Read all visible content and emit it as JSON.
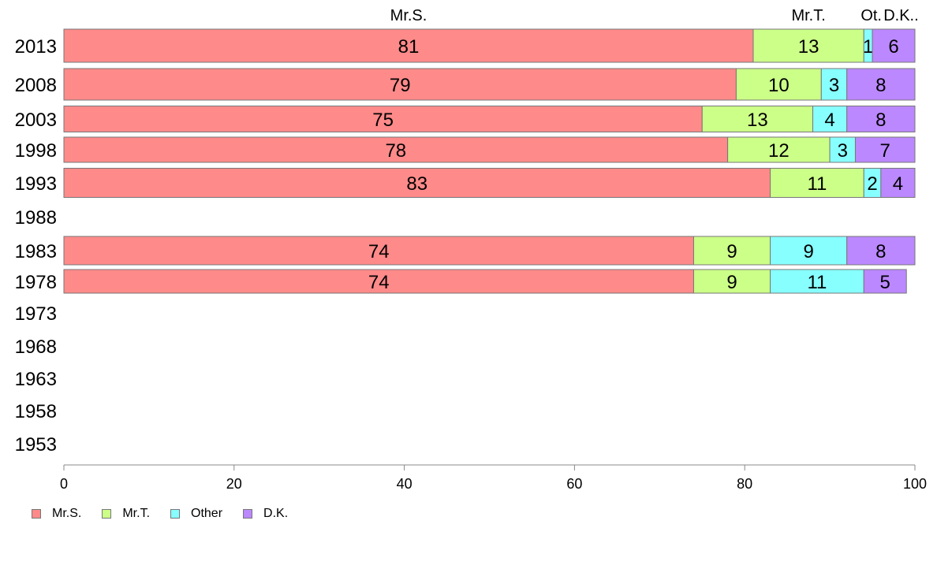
{
  "chart_data": {
    "type": "bar",
    "orientation": "horizontal",
    "stacked": true,
    "categories": [
      "2013",
      "2008",
      "2003",
      "1998",
      "1993",
      "1988",
      "1983",
      "1978",
      "1973",
      "1968",
      "1963",
      "1958",
      "1953"
    ],
    "series": [
      {
        "name": "Mr.S.",
        "color": "#ff8a8a",
        "values": [
          81,
          79,
          75,
          78,
          83,
          null,
          74,
          74,
          null,
          null,
          null,
          null,
          null
        ]
      },
      {
        "name": "Mr.T.",
        "color": "#ccff88",
        "values": [
          13,
          10,
          13,
          12,
          11,
          null,
          9,
          9,
          null,
          null,
          null,
          null,
          null
        ]
      },
      {
        "name": "Other",
        "color": "#88ffff",
        "values": [
          1,
          3,
          4,
          3,
          2,
          null,
          9,
          11,
          null,
          null,
          null,
          null,
          null
        ]
      },
      {
        "name": "D.K.",
        "color": "#bb88ff",
        "values": [
          6,
          8,
          8,
          7,
          4,
          null,
          8,
          5,
          null,
          null,
          null,
          null,
          null
        ]
      }
    ],
    "top_labels": [
      "Mr.S.",
      "Mr.T.",
      "Ot.",
      "D.K.."
    ],
    "xlim": [
      0,
      100
    ],
    "x_ticks": [
      0,
      20,
      40,
      60,
      80,
      100
    ],
    "grid": false,
    "legend_position": "bottom-left"
  }
}
